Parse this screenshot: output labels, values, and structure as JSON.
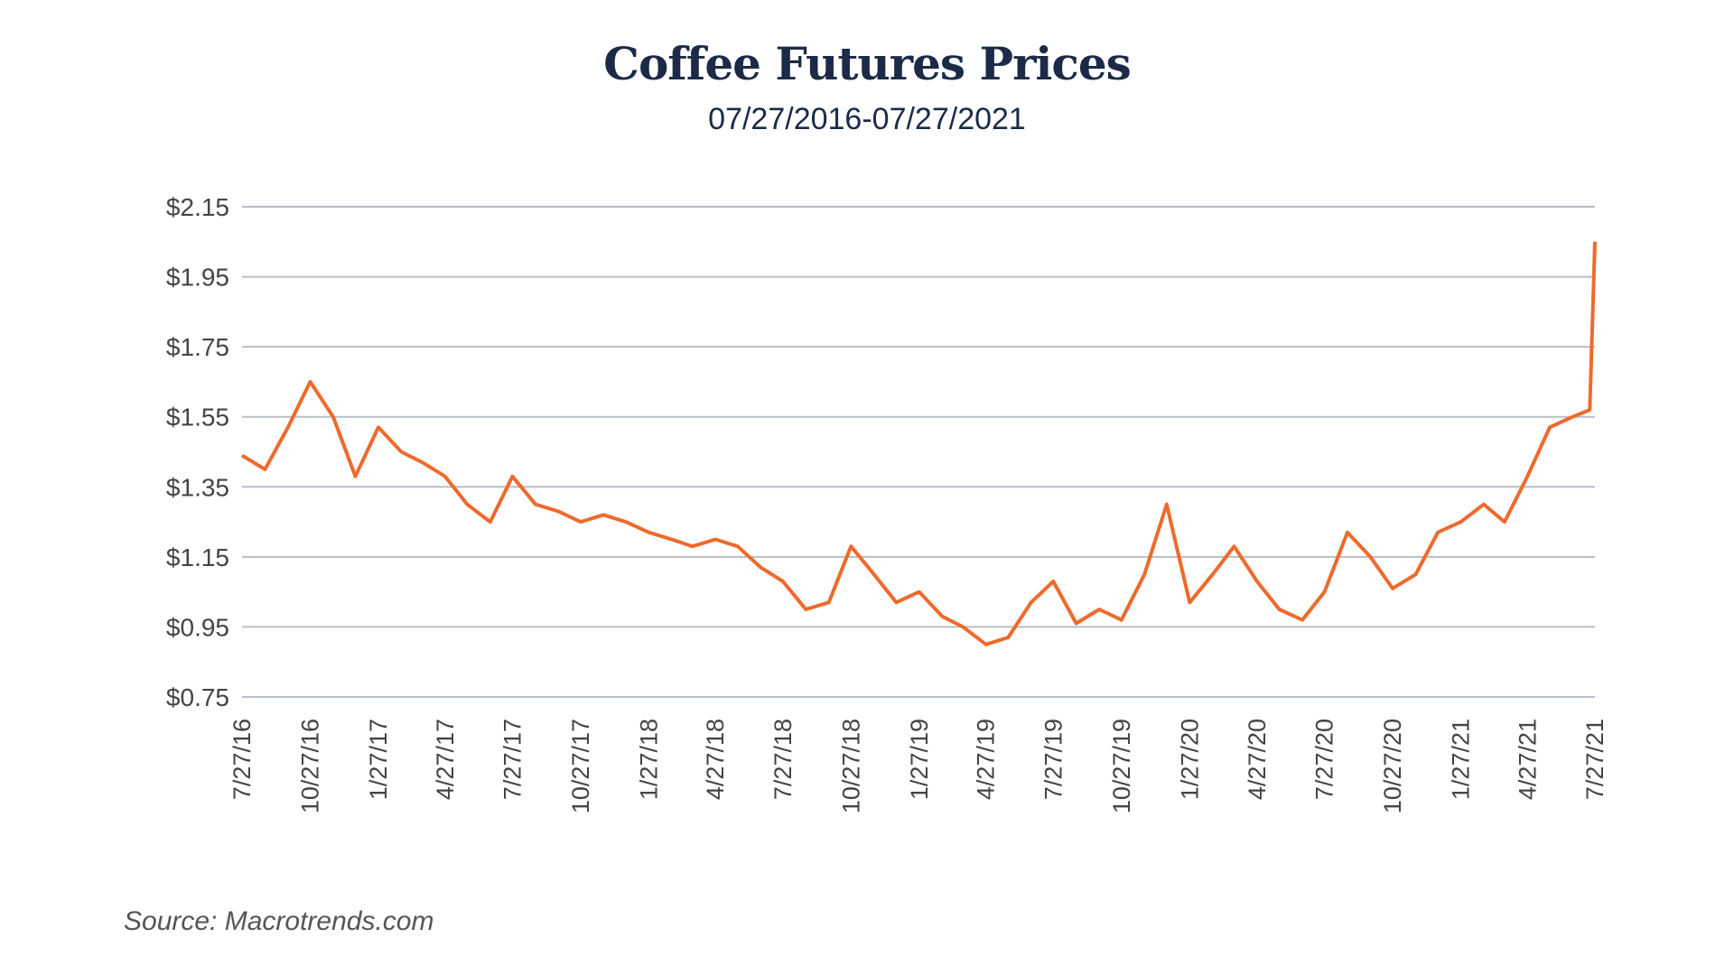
{
  "chart_data": {
    "type": "line",
    "title": "Coffee Futures Prices",
    "subtitle": "07/27/2016-07/27/2021",
    "source": "Source: Macrotrends.com",
    "x": [
      "7/27/16",
      "8/27/16",
      "9/27/16",
      "10/27/16",
      "11/27/16",
      "12/27/16",
      "1/27/17",
      "2/27/17",
      "3/27/17",
      "4/27/17",
      "5/27/17",
      "6/27/17",
      "7/27/17",
      "8/27/17",
      "9/27/17",
      "10/27/17",
      "11/27/17",
      "12/27/17",
      "1/27/18",
      "2/27/18",
      "3/27/18",
      "4/27/18",
      "5/27/18",
      "6/27/18",
      "7/27/18",
      "8/27/18",
      "9/27/18",
      "10/27/18",
      "11/27/18",
      "12/27/18",
      "1/27/19",
      "2/27/19",
      "3/27/19",
      "4/27/19",
      "5/27/19",
      "6/27/19",
      "7/27/19",
      "8/27/19",
      "9/27/19",
      "10/27/19",
      "11/27/19",
      "12/27/19",
      "1/27/20",
      "2/27/20",
      "3/27/20",
      "4/27/20",
      "5/27/20",
      "6/27/20",
      "7/27/20",
      "8/27/20",
      "9/27/20",
      "10/27/20",
      "11/27/20",
      "12/27/20",
      "1/27/21",
      "2/27/21",
      "3/27/21",
      "4/27/21",
      "5/27/21",
      "6/27/21",
      "7/20/21",
      "7/27/21"
    ],
    "series": [
      {
        "name": "Coffee futures",
        "color": "#ee6a2c",
        "values": [
          1.44,
          1.4,
          1.52,
          1.65,
          1.55,
          1.38,
          1.52,
          1.45,
          1.42,
          1.38,
          1.3,
          1.25,
          1.38,
          1.3,
          1.28,
          1.25,
          1.27,
          1.25,
          1.22,
          1.2,
          1.18,
          1.2,
          1.18,
          1.12,
          1.08,
          1.0,
          1.02,
          1.18,
          1.1,
          1.02,
          1.05,
          0.98,
          0.95,
          0.9,
          0.92,
          1.02,
          1.08,
          0.96,
          1.0,
          0.97,
          1.1,
          1.3,
          1.02,
          1.1,
          1.18,
          1.08,
          1.0,
          0.97,
          1.05,
          1.22,
          1.15,
          1.06,
          1.1,
          1.22,
          1.25,
          1.3,
          1.25,
          1.38,
          1.52,
          1.55,
          1.57,
          2.05
        ]
      }
    ],
    "xlim": [
      "7/27/16",
      "7/27/21"
    ],
    "xticks": [
      "7/27/16",
      "10/27/16",
      "1/27/17",
      "4/27/17",
      "7/27/17",
      "10/27/17",
      "1/27/18",
      "4/27/18",
      "7/27/18",
      "10/27/18",
      "1/27/19",
      "4/27/19",
      "7/27/19",
      "10/27/19",
      "1/27/20",
      "4/27/20",
      "7/27/20",
      "10/27/20",
      "1/27/21",
      "4/27/21",
      "7/27/21"
    ],
    "ylim": [
      0.75,
      2.15
    ],
    "yticks": [
      {
        "value": 0.75,
        "label": "$0.75"
      },
      {
        "value": 0.95,
        "label": "$0.95"
      },
      {
        "value": 1.15,
        "label": "$1.15"
      },
      {
        "value": 1.35,
        "label": "$1.35"
      },
      {
        "value": 1.55,
        "label": "$1.55"
      },
      {
        "value": 1.75,
        "label": "$1.75"
      },
      {
        "value": 1.95,
        "label": "$1.95"
      },
      {
        "value": 2.15,
        "label": "$2.15"
      }
    ],
    "grid": true
  }
}
